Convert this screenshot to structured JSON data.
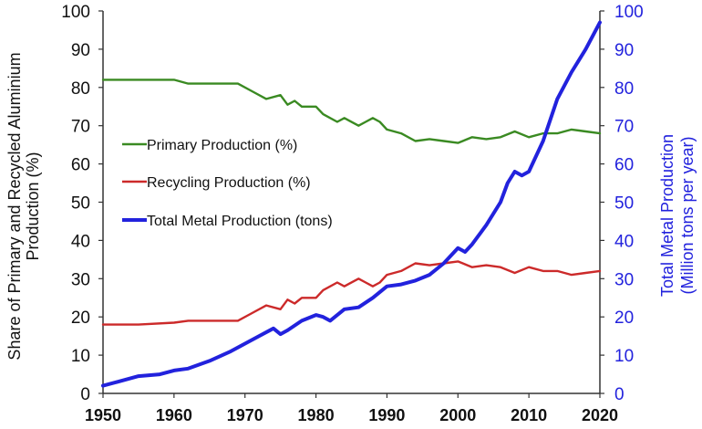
{
  "chart_data": {
    "type": "line",
    "title": "",
    "xlabel": "",
    "ylabel_left": [
      "Share of Primary and Recycled Aluminium",
      "Production (%)"
    ],
    "ylabel_right": [
      "Total Metal Production",
      "(Million tons per year)"
    ],
    "xlim": [
      1950,
      2020
    ],
    "ylim_left": [
      0,
      100
    ],
    "ylim_right": [
      0,
      100
    ],
    "x_ticks": [
      "1950",
      "1960",
      "1970",
      "1980",
      "1990",
      "2000",
      "2010",
      "2020"
    ],
    "y_ticks_left": [
      "0",
      "10",
      "20",
      "30",
      "40",
      "50",
      "60",
      "70",
      "80",
      "90",
      "100"
    ],
    "y_ticks_right": [
      "0",
      "10",
      "20",
      "30",
      "40",
      "50",
      "60",
      "70",
      "80",
      "90",
      "100"
    ],
    "grid": false,
    "legend_position": "left-center",
    "series": [
      {
        "name": "Primary Production (%)",
        "color": "#3a8a22",
        "axis": "left",
        "x": [
          1950,
          1955,
          1960,
          1962,
          1965,
          1969,
          1971,
          1973,
          1975,
          1976,
          1977,
          1978,
          1980,
          1981,
          1983,
          1984,
          1986,
          1987,
          1988,
          1989,
          1990,
          1992,
          1994,
          1996,
          1998,
          2000,
          2002,
          2004,
          2006,
          2008,
          2010,
          2012,
          2014,
          2016,
          2018,
          2020
        ],
        "values": [
          82,
          82,
          82,
          81,
          81,
          81,
          79,
          77,
          78,
          75.5,
          76.5,
          75,
          75,
          73,
          71,
          72,
          70,
          71,
          72,
          71,
          69,
          68,
          66,
          66.5,
          66,
          65.5,
          67,
          66.5,
          67,
          68.5,
          67,
          68,
          68,
          69,
          68.5,
          68
        ]
      },
      {
        "name": "Recycling Production (%)",
        "color": "#cc2a2a",
        "axis": "left",
        "x": [
          1950,
          1955,
          1960,
          1962,
          1965,
          1969,
          1971,
          1973,
          1975,
          1976,
          1977,
          1978,
          1980,
          1981,
          1983,
          1984,
          1986,
          1987,
          1988,
          1989,
          1990,
          1992,
          1994,
          1996,
          1998,
          2000,
          2002,
          2004,
          2006,
          2008,
          2010,
          2012,
          2014,
          2016,
          2018,
          2020
        ],
        "values": [
          18,
          18,
          18.5,
          19,
          19,
          19,
          21,
          23,
          22,
          24.5,
          23.5,
          25,
          25,
          27,
          29,
          28,
          30,
          29,
          28,
          29,
          31,
          32,
          34,
          33.5,
          34,
          34.5,
          33,
          33.5,
          33,
          31.5,
          33,
          32,
          32,
          31,
          31.5,
          32
        ]
      },
      {
        "name": "Total Metal Production (tons)",
        "color": "#2222dd",
        "axis": "right",
        "x": [
          1950,
          1952,
          1955,
          1958,
          1960,
          1962,
          1965,
          1968,
          1970,
          1972,
          1974,
          1975,
          1976,
          1978,
          1980,
          1981,
          1982,
          1984,
          1986,
          1988,
          1990,
          1992,
          1994,
          1996,
          1998,
          2000,
          2001,
          2002,
          2004,
          2006,
          2007,
          2008,
          2009,
          2010,
          2012,
          2014,
          2016,
          2018,
          2020
        ],
        "values": [
          2,
          3,
          4.5,
          5,
          6,
          6.5,
          8.5,
          11,
          13,
          15,
          17,
          15.5,
          16.5,
          19,
          20.5,
          20,
          19,
          22,
          22.5,
          25,
          28,
          28.5,
          29.5,
          31,
          34,
          38,
          37,
          39,
          44,
          50,
          55,
          58,
          57,
          58,
          66,
          77,
          84,
          90,
          97
        ]
      }
    ]
  }
}
